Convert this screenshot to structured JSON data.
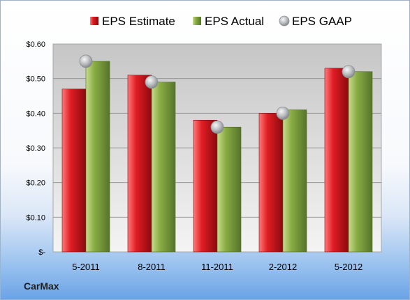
{
  "company": "CarMax",
  "chart_data": {
    "type": "bar",
    "categories": [
      "5-2011",
      "8-2011",
      "11-2011",
      "2-2012",
      "5-2012"
    ],
    "series": [
      {
        "name": "EPS Estimate",
        "kind": "bar",
        "color": "#c0141a",
        "values": [
          0.47,
          0.51,
          0.38,
          0.4,
          0.53
        ]
      },
      {
        "name": "EPS Actual",
        "kind": "bar",
        "color": "#7ea23a",
        "values": [
          0.55,
          0.49,
          0.36,
          0.41,
          0.52
        ]
      },
      {
        "name": "EPS GAAP",
        "kind": "marker",
        "color": "#a0a4a8",
        "values": [
          0.55,
          0.49,
          0.36,
          0.4,
          0.52
        ]
      }
    ],
    "ylim": [
      0,
      0.6
    ],
    "yticks": [
      {
        "value": 0,
        "label": "$-"
      },
      {
        "value": 0.1,
        "label": "$0.10"
      },
      {
        "value": 0.2,
        "label": "$0.20"
      },
      {
        "value": 0.3,
        "label": "$0.30"
      },
      {
        "value": 0.4,
        "label": "$0.40"
      },
      {
        "value": 0.5,
        "label": "$0.50"
      },
      {
        "value": 0.6,
        "label": "$0.60"
      }
    ],
    "grid": true,
    "legend_position": "top"
  }
}
